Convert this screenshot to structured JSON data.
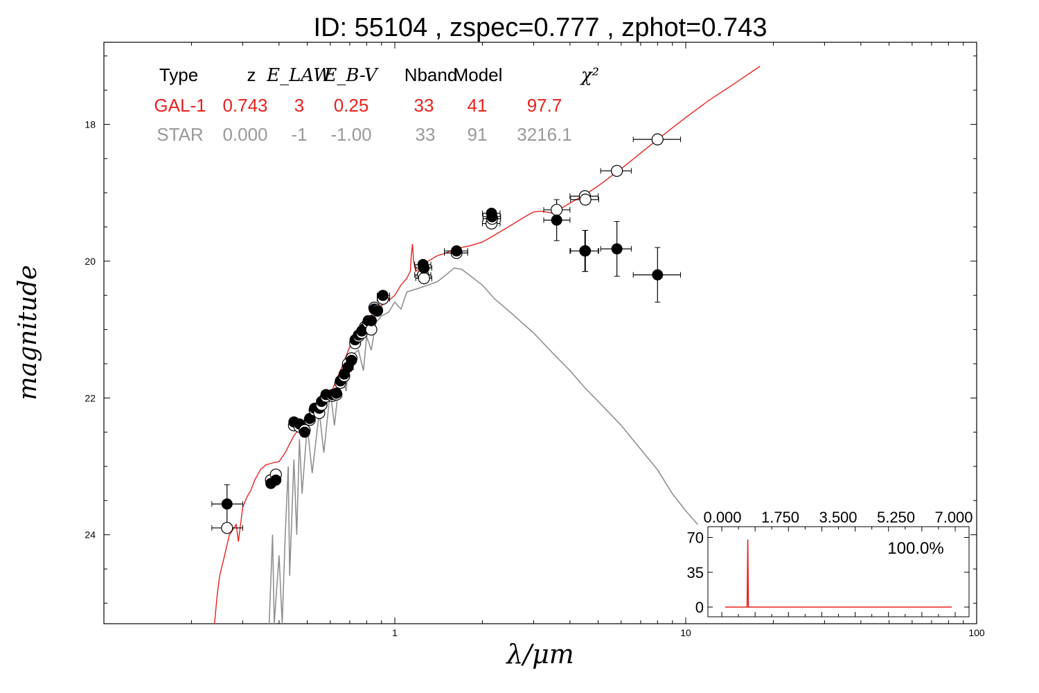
{
  "chart_data": {
    "type": "scatter",
    "title": "ID:  55104 , zspec=0.777 , zphot=0.743",
    "xlabel": "λ/μm",
    "ylabel": "magnitude",
    "x_scale": "log",
    "xlim": [
      0.1,
      100
    ],
    "ylim": [
      25.3,
      16.8
    ],
    "y_reversed": true,
    "x_ticks": [
      {
        "v": 1,
        "label": "1"
      },
      {
        "v": 10,
        "label": "10"
      },
      {
        "v": 100,
        "label": "100"
      }
    ],
    "y_ticks": [
      {
        "v": 18,
        "label": "18"
      },
      {
        "v": 20,
        "label": "20"
      },
      {
        "v": 22,
        "label": "22"
      },
      {
        "v": 24,
        "label": "24"
      }
    ],
    "grid": false,
    "legend_table": {
      "headers": [
        "Type",
        "z",
        "E_LAW",
        "E_B-V",
        "Nband",
        "Model",
        "χ²"
      ],
      "rows": [
        {
          "color": "#e8221e",
          "cells": [
            "GAL-1",
            "0.743",
            "3",
            "0.25",
            "33",
            "41",
            "97.7"
          ]
        },
        {
          "color": "#999999",
          "cells": [
            "STAR",
            "0.000",
            "-1",
            "-1.00",
            "33",
            "91",
            "3216.1"
          ]
        }
      ]
    },
    "series": [
      {
        "kind": "galaxy-model",
        "color": "#e8221e",
        "points": [
          [
            0.24,
            25.3
          ],
          [
            0.245,
            24.9
          ],
          [
            0.25,
            24.6
          ],
          [
            0.26,
            24.3
          ],
          [
            0.27,
            24.0
          ],
          [
            0.28,
            23.9
          ],
          [
            0.285,
            23.85
          ],
          [
            0.29,
            24.1
          ],
          [
            0.295,
            23.85
          ],
          [
            0.3,
            23.6
          ],
          [
            0.31,
            23.45
          ],
          [
            0.32,
            23.35
          ],
          [
            0.33,
            23.2
          ],
          [
            0.345,
            23.05
          ],
          [
            0.36,
            22.98
          ],
          [
            0.38,
            22.95
          ],
          [
            0.4,
            22.93
          ],
          [
            0.42,
            22.8
          ],
          [
            0.45,
            22.55
          ],
          [
            0.48,
            22.4
          ],
          [
            0.5,
            22.35
          ],
          [
            0.55,
            22.1
          ],
          [
            0.6,
            21.95
          ],
          [
            0.65,
            21.6
          ],
          [
            0.7,
            21.25
          ],
          [
            0.75,
            21.05
          ],
          [
            0.8,
            20.85
          ],
          [
            0.85,
            20.75
          ],
          [
            0.9,
            20.65
          ],
          [
            0.95,
            20.58
          ],
          [
            1.0,
            20.5
          ],
          [
            1.05,
            20.35
          ],
          [
            1.1,
            20.25
          ],
          [
            1.13,
            20.15
          ],
          [
            1.14,
            19.9
          ],
          [
            1.15,
            19.75
          ],
          [
            1.16,
            20.0
          ],
          [
            1.18,
            20.15
          ],
          [
            1.22,
            20.1
          ],
          [
            1.3,
            20.0
          ],
          [
            1.4,
            19.92
          ],
          [
            1.5,
            19.88
          ],
          [
            1.6,
            19.82
          ],
          [
            1.8,
            19.78
          ],
          [
            2.0,
            19.72
          ],
          [
            2.2,
            19.62
          ],
          [
            2.5,
            19.48
          ],
          [
            2.8,
            19.35
          ],
          [
            3.0,
            19.28
          ],
          [
            3.2,
            19.27
          ],
          [
            3.5,
            19.3
          ],
          [
            4.0,
            19.15
          ],
          [
            4.5,
            19.03
          ],
          [
            5.0,
            18.9
          ],
          [
            6.0,
            18.65
          ],
          [
            7.0,
            18.42
          ],
          [
            8.0,
            18.22
          ],
          [
            10.0,
            17.9
          ],
          [
            12.0,
            17.65
          ],
          [
            15.0,
            17.38
          ],
          [
            18.0,
            17.15
          ]
        ]
      },
      {
        "kind": "star-model",
        "color": "#8f8f8f",
        "points": [
          [
            0.37,
            25.3
          ],
          [
            0.38,
            24.0
          ],
          [
            0.385,
            25.3
          ],
          [
            0.4,
            24.3
          ],
          [
            0.41,
            25.3
          ],
          [
            0.42,
            24.0
          ],
          [
            0.43,
            23.0
          ],
          [
            0.435,
            24.6
          ],
          [
            0.45,
            22.9
          ],
          [
            0.46,
            24.0
          ],
          [
            0.47,
            22.6
          ],
          [
            0.48,
            23.4
          ],
          [
            0.5,
            22.4
          ],
          [
            0.52,
            23.1
          ],
          [
            0.55,
            22.2
          ],
          [
            0.57,
            22.8
          ],
          [
            0.6,
            21.9
          ],
          [
            0.62,
            22.4
          ],
          [
            0.65,
            21.6
          ],
          [
            0.68,
            21.9
          ],
          [
            0.7,
            21.4
          ],
          [
            0.75,
            21.3
          ],
          [
            0.78,
            21.6
          ],
          [
            0.8,
            21.1
          ],
          [
            0.83,
            21.3
          ],
          [
            0.86,
            20.9
          ],
          [
            0.9,
            20.8
          ],
          [
            0.95,
            20.75
          ],
          [
            1.0,
            20.6
          ],
          [
            1.05,
            20.7
          ],
          [
            1.1,
            20.45
          ],
          [
            1.2,
            20.4
          ],
          [
            1.3,
            20.35
          ],
          [
            1.4,
            20.3
          ],
          [
            1.5,
            20.2
          ],
          [
            1.6,
            20.1
          ],
          [
            1.7,
            20.12
          ],
          [
            1.8,
            20.2
          ],
          [
            2.0,
            20.35
          ],
          [
            2.2,
            20.55
          ],
          [
            2.5,
            20.75
          ],
          [
            3.0,
            21.05
          ],
          [
            3.5,
            21.35
          ],
          [
            4.0,
            21.6
          ],
          [
            4.5,
            21.85
          ],
          [
            5.0,
            22.05
          ],
          [
            6.0,
            22.4
          ],
          [
            7.0,
            22.75
          ],
          [
            8.0,
            23.05
          ],
          [
            9.0,
            23.4
          ],
          [
            10.0,
            23.65
          ],
          [
            11.0,
            23.85
          ]
        ]
      }
    ],
    "photometry": {
      "observed_color": "#000000",
      "model_color": "#ffffff",
      "points": [
        {
          "x": 0.265,
          "xerr_lo": 0.03,
          "xerr_hi": 0.035,
          "obs": 23.55,
          "obs_err": 0.28,
          "mod": 23.9
        },
        {
          "x": 0.375,
          "xerr_lo": 0.01,
          "xerr_hi": 0.01,
          "obs": 23.25,
          "obs_err": 0.03,
          "mod": 23.2
        },
        {
          "x": 0.39,
          "xerr_lo": 0.01,
          "xerr_hi": 0.01,
          "obs": 23.2,
          "obs_err": 0.03,
          "mod": 23.12
        },
        {
          "x": 0.45,
          "xerr_lo": 0.01,
          "xerr_hi": 0.01,
          "obs": 22.35,
          "obs_err": 0.03,
          "mod": 22.4
        },
        {
          "x": 0.47,
          "xerr_lo": 0.01,
          "xerr_hi": 0.01,
          "obs": 22.38,
          "obs_err": 0.03,
          "mod": 22.42
        },
        {
          "x": 0.49,
          "xerr_lo": 0.01,
          "xerr_hi": 0.01,
          "obs": 22.5,
          "obs_err": 0.04,
          "mod": 22.47
        },
        {
          "x": 0.51,
          "xerr_lo": 0.01,
          "xerr_hi": 0.01,
          "obs": 22.3,
          "obs_err": 0.03,
          "mod": 22.32
        },
        {
          "x": 0.53,
          "xerr_lo": 0.01,
          "xerr_hi": 0.01,
          "obs": 22.15,
          "obs_err": 0.03,
          "mod": 22.18
        },
        {
          "x": 0.55,
          "xerr_lo": 0.01,
          "xerr_hi": 0.01,
          "obs": 22.15,
          "obs_err": 0.03,
          "mod": 22.22
        },
        {
          "x": 0.56,
          "xerr_lo": 0.01,
          "xerr_hi": 0.01,
          "obs": 22.05,
          "obs_err": 0.03,
          "mod": 22.1
        },
        {
          "x": 0.58,
          "xerr_lo": 0.01,
          "xerr_hi": 0.01,
          "obs": 21.95,
          "obs_err": 0.03,
          "mod": 21.98
        },
        {
          "x": 0.61,
          "xerr_lo": 0.01,
          "xerr_hi": 0.01,
          "obs": 21.95,
          "obs_err": 0.03,
          "mod": 21.97
        },
        {
          "x": 0.63,
          "xerr_lo": 0.01,
          "xerr_hi": 0.01,
          "obs": 21.93,
          "obs_err": 0.03,
          "mod": 21.95
        },
        {
          "x": 0.65,
          "xerr_lo": 0.02,
          "xerr_hi": 0.02,
          "obs": 21.75,
          "obs_err": 0.03,
          "mod": 21.78
        },
        {
          "x": 0.67,
          "xerr_lo": 0.01,
          "xerr_hi": 0.01,
          "obs": 21.65,
          "obs_err": 0.03,
          "mod": 21.68
        },
        {
          "x": 0.69,
          "xerr_lo": 0.02,
          "xerr_hi": 0.03,
          "obs": 21.55,
          "obs_err": 0.03,
          "mod": 21.5
        },
        {
          "x": 0.71,
          "xerr_lo": 0.01,
          "xerr_hi": 0.01,
          "obs": 21.45,
          "obs_err": 0.03,
          "mod": 21.42
        },
        {
          "x": 0.73,
          "xerr_lo": 0.01,
          "xerr_hi": 0.01,
          "obs": 21.15,
          "obs_err": 0.03,
          "mod": 21.2
        },
        {
          "x": 0.75,
          "xerr_lo": 0.01,
          "xerr_hi": 0.01,
          "obs": 21.08,
          "obs_err": 0.03,
          "mod": 21.1
        },
        {
          "x": 0.77,
          "xerr_lo": 0.01,
          "xerr_hi": 0.01,
          "obs": 21.02,
          "obs_err": 0.03,
          "mod": 21.05
        },
        {
          "x": 0.79,
          "xerr_lo": 0.01,
          "xerr_hi": 0.01,
          "obs": 20.98,
          "obs_err": 0.03,
          "mod": 20.96
        },
        {
          "x": 0.81,
          "xerr_lo": 0.01,
          "xerr_hi": 0.01,
          "obs": 20.87,
          "obs_err": 0.03,
          "mod": 20.9
        },
        {
          "x": 0.83,
          "xerr_lo": 0.02,
          "xerr_hi": 0.02,
          "obs": 20.87,
          "obs_err": 0.03,
          "mod": 21.0
        },
        {
          "x": 0.85,
          "xerr_lo": 0.01,
          "xerr_hi": 0.01,
          "obs": 20.7,
          "obs_err": 0.03,
          "mod": 20.68
        },
        {
          "x": 0.87,
          "xerr_lo": 0.01,
          "xerr_hi": 0.01,
          "obs": 20.73,
          "obs_err": 0.03,
          "mod": 20.72
        },
        {
          "x": 0.91,
          "xerr_lo": 0.04,
          "xerr_hi": 0.05,
          "obs": 20.5,
          "obs_err": 0.03,
          "mod": 20.55
        },
        {
          "x": 1.25,
          "xerr_lo": 0.08,
          "xerr_hi": 0.08,
          "obs": 20.05,
          "obs_err": 0.04,
          "mod": 20.2
        },
        {
          "x": 1.26,
          "xerr_lo": 0.08,
          "xerr_hi": 0.08,
          "obs": 20.1,
          "obs_err": 0.04,
          "mod": 20.25
        },
        {
          "x": 1.63,
          "xerr_lo": 0.15,
          "xerr_hi": 0.15,
          "obs": 19.85,
          "obs_err": 0.03,
          "mod": 19.88
        },
        {
          "x": 2.15,
          "xerr_lo": 0.15,
          "xerr_hi": 0.15,
          "obs": 19.3,
          "obs_err": 0.05,
          "mod": 19.45
        },
        {
          "x": 2.16,
          "xerr_lo": 0.15,
          "xerr_hi": 0.15,
          "obs": 19.35,
          "obs_err": 0.05,
          "mod": 19.38
        },
        {
          "x": 3.6,
          "xerr_lo": 0.35,
          "xerr_hi": 0.4,
          "obs": 19.4,
          "obs_err": 0.3,
          "mod": 19.25
        },
        {
          "x": 4.5,
          "xerr_lo": 0.5,
          "xerr_hi": 0.5,
          "obs": 19.85,
          "obs_err": 0.3,
          "mod": 19.05
        },
        {
          "x": 4.52,
          "xerr_lo": 0.5,
          "xerr_hi": 0.5,
          "obs": 19.85,
          "obs_err": 0.3,
          "mod": 19.1
        },
        {
          "x": 5.8,
          "xerr_lo": 0.7,
          "xerr_hi": 0.7,
          "obs": 19.82,
          "obs_err": 0.4,
          "mod": 18.68
        },
        {
          "x": 8.0,
          "xerr_lo": 1.4,
          "xerr_hi": 1.6,
          "obs": 20.2,
          "obs_err": 0.4,
          "mod": 18.22
        }
      ]
    },
    "inset": {
      "xlim": [
        0,
        7
      ],
      "ylim": [
        -5,
        80
      ],
      "x_ticks": [
        {
          "v": 0,
          "label": "0.000"
        },
        {
          "v": 1.75,
          "label": "1.750"
        },
        {
          "v": 3.5,
          "label": "3.500"
        },
        {
          "v": 5.25,
          "label": "5.250"
        },
        {
          "v": 7,
          "label": "7.000"
        }
      ],
      "y_ticks": [
        {
          "v": 0,
          "label": "0"
        },
        {
          "v": 35,
          "label": "35"
        },
        {
          "v": 70,
          "label": "70"
        }
      ],
      "annotation": "100.0%",
      "color": "#e8221e",
      "pdf": [
        [
          0.1,
          0
        ],
        [
          0.74,
          0
        ],
        [
          0.76,
          0
        ],
        [
          0.78,
          68
        ],
        [
          0.8,
          0
        ],
        [
          0.82,
          0
        ],
        [
          6.9,
          0
        ]
      ]
    }
  }
}
